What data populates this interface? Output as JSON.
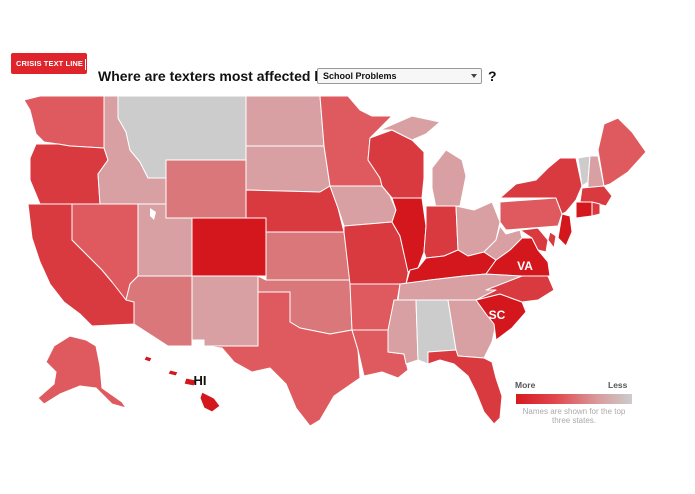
{
  "header": {
    "logo_text": "CRISIS TEXT LINE",
    "question": "Where are texters most affected by",
    "selected_topic": "School Problems",
    "question_mark": "?"
  },
  "legend": {
    "more_label": "More",
    "less_label": "Less",
    "note": "Names are shown for the top three states.",
    "color_more": "#d71920",
    "color_less": "#cccccc"
  },
  "map_labels": {
    "va": "VA",
    "sc": "SC",
    "hi": "HI"
  },
  "colors": {
    "level1": "#d4161d",
    "level2": "#d93a40",
    "level3": "#df5a5e",
    "level4": "#d9777a",
    "level5": "#d8a0a2",
    "level6": "#cccccc"
  }
}
